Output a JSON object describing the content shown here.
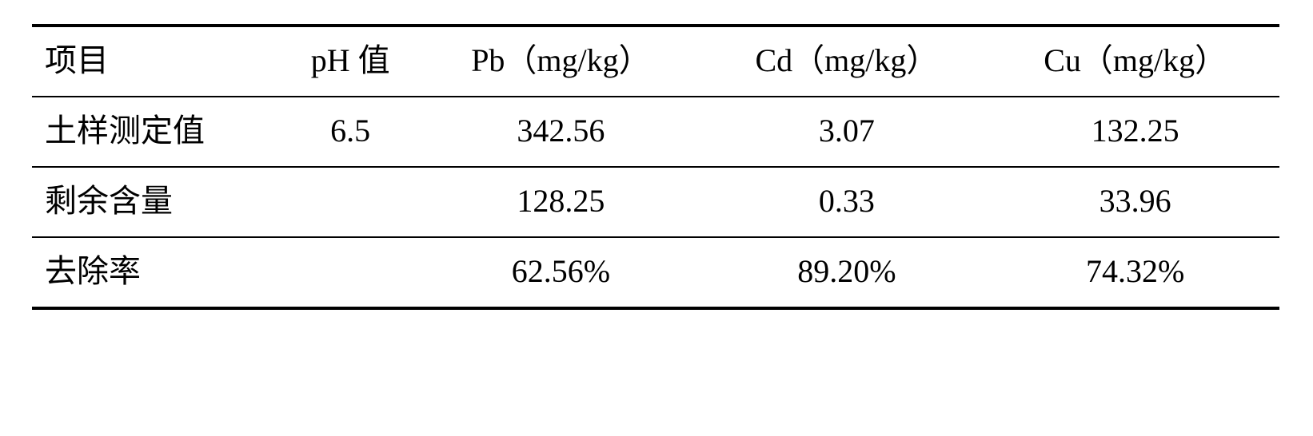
{
  "table": {
    "columns": [
      {
        "label": "项目"
      },
      {
        "label": "pH 值"
      },
      {
        "label": "Pb（mg/kg）"
      },
      {
        "label": "Cd（mg/kg）"
      },
      {
        "label": "Cu（mg/kg）"
      }
    ],
    "rows": [
      {
        "label": "土样测定值",
        "ph": "6.5",
        "pb": "342.56",
        "cd": "3.07",
        "cu": "132.25"
      },
      {
        "label": "剩余含量",
        "ph": "",
        "pb": "128.25",
        "cd": "0.33",
        "cu": "33.96"
      },
      {
        "label": "去除率",
        "ph": "",
        "pb": "62.56%",
        "cd": "89.20%",
        "cu": "74.32%"
      }
    ],
    "border_color": "#000000",
    "background_color": "#ffffff",
    "text_color": "#000000",
    "header_fontsize": 40,
    "cell_fontsize": 40,
    "top_bottom_border_width": 4,
    "inner_border_width": 2,
    "column_widths_pct": [
      20,
      16,
      22,
      22,
      20
    ]
  }
}
